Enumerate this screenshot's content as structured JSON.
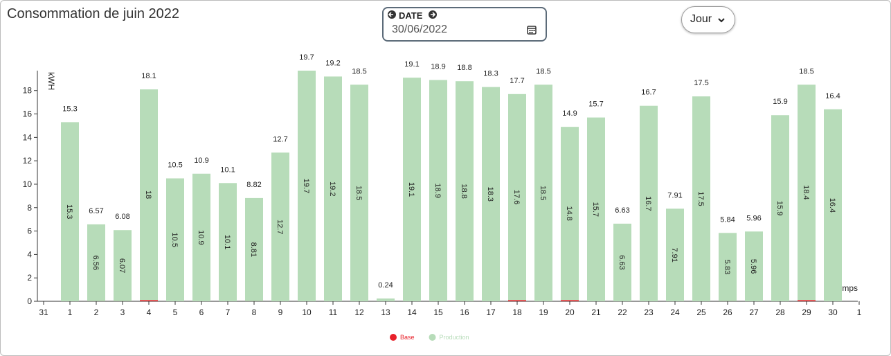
{
  "header": {
    "title": "Consommation de juin 2022",
    "date_label": "DATE",
    "date_value": "30/06/2022",
    "period": "Jour"
  },
  "chart_data": {
    "type": "bar",
    "stacked": true,
    "y_label": "kWH",
    "x_label": "temps",
    "x_axis_ends": [
      "31",
      "1"
    ],
    "categories": [
      "1",
      "2",
      "3",
      "4",
      "5",
      "6",
      "7",
      "8",
      "9",
      "10",
      "11",
      "12",
      "13",
      "14",
      "15",
      "16",
      "17",
      "18",
      "19",
      "20",
      "21",
      "22",
      "23",
      "24",
      "25",
      "26",
      "27",
      "28",
      "29",
      "30"
    ],
    "series": [
      {
        "name": "Base",
        "color": "#e8212a",
        "values": [
          0,
          0.01,
          0.01,
          0.1,
          0,
          0,
          0,
          0.01,
          0,
          0,
          0,
          0,
          0,
          0,
          0,
          0,
          0,
          0.1,
          0,
          0.1,
          0,
          0,
          0,
          0,
          0,
          0.01,
          0,
          0,
          0.1,
          0
        ]
      },
      {
        "name": "Production",
        "color": "#b7dcb9",
        "values": [
          15.3,
          6.56,
          6.07,
          18,
          10.5,
          10.9,
          10.1,
          8.81,
          12.7,
          19.7,
          19.2,
          18.5,
          0.24,
          19.1,
          18.9,
          18.8,
          18.3,
          17.6,
          18.5,
          14.8,
          15.7,
          6.63,
          16.7,
          7.91,
          17.5,
          5.83,
          5.96,
          15.9,
          18.4,
          16.4
        ]
      }
    ],
    "totals": [
      15.3,
      6.57,
      6.08,
      18.1,
      10.5,
      10.9,
      10.1,
      8.82,
      12.7,
      19.7,
      19.2,
      18.5,
      0.24,
      19.1,
      18.9,
      18.8,
      18.3,
      17.7,
      18.5,
      14.9,
      15.7,
      6.63,
      16.7,
      7.91,
      17.5,
      5.84,
      5.96,
      15.9,
      18.5,
      16.4
    ],
    "ylim": [
      0,
      19.7
    ],
    "yticks": [
      0,
      2,
      4,
      6,
      8,
      10,
      12,
      14,
      16,
      18
    ]
  }
}
